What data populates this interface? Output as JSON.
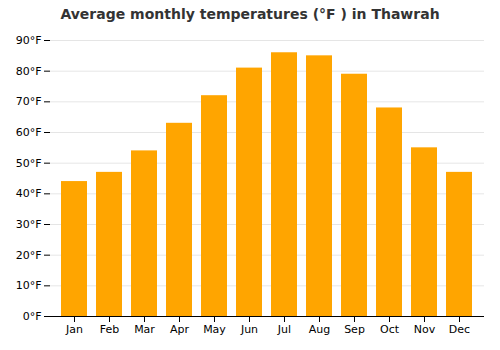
{
  "chart_data": {
    "type": "bar",
    "title": "Average monthly temperatures (°F ) in Thawrah",
    "categories": [
      "Jan",
      "Feb",
      "Mar",
      "Apr",
      "May",
      "Jun",
      "Jul",
      "Aug",
      "Sep",
      "Oct",
      "Nov",
      "Dec"
    ],
    "values": [
      44,
      47,
      54,
      63,
      72,
      81,
      86,
      85,
      79,
      68,
      55,
      47
    ],
    "color": "#FFA500",
    "ylim": [
      0,
      90
    ],
    "yticks": [
      {
        "value": 0,
        "label": "0°F"
      },
      {
        "value": 10,
        "label": "10°F"
      },
      {
        "value": 20,
        "label": "20°F"
      },
      {
        "value": 30,
        "label": "30°F"
      },
      {
        "value": 40,
        "label": "40°F"
      },
      {
        "value": 50,
        "label": "50°F"
      },
      {
        "value": 60,
        "label": "60°F"
      },
      {
        "value": 70,
        "label": "70°F"
      },
      {
        "value": 80,
        "label": "80°F"
      },
      {
        "value": 90,
        "label": "90°F"
      }
    ],
    "grid": true
  }
}
